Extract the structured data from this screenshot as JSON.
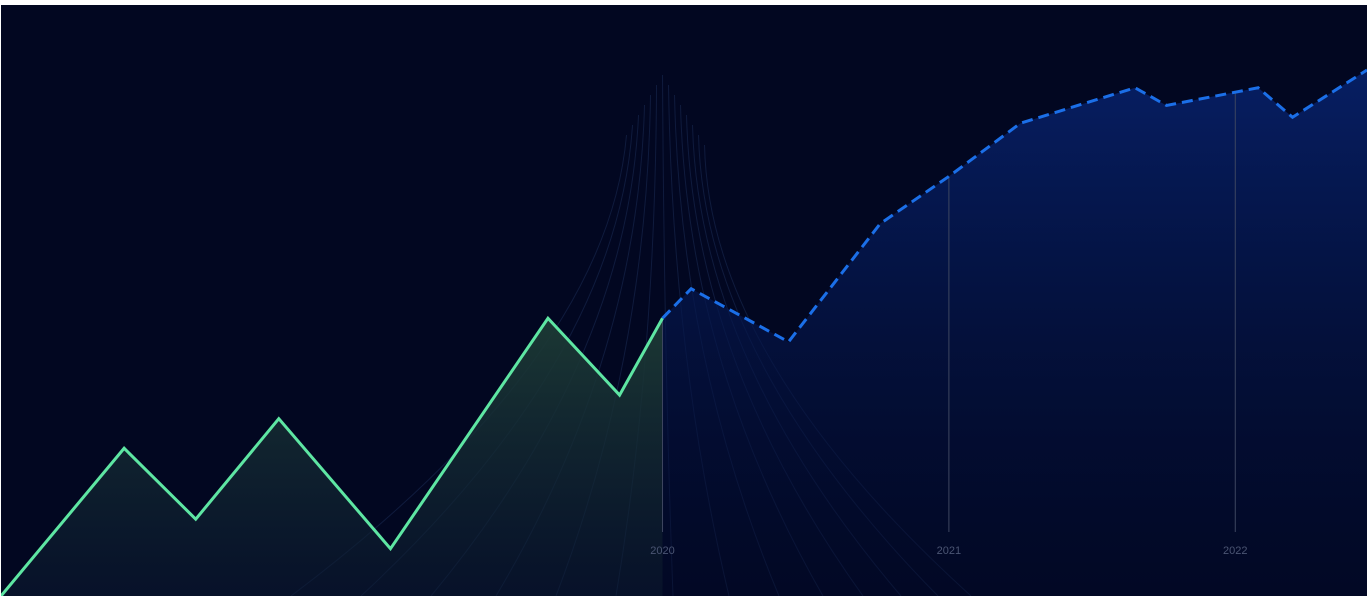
{
  "chart_data": {
    "type": "line",
    "title": "",
    "xlabel": "",
    "ylabel": "",
    "x_ticks": [
      2020,
      2021,
      2022
    ],
    "xlim": [
      2017.69,
      2022.46
    ],
    "ylim": [
      0,
      100
    ],
    "grid": false,
    "legend": "none",
    "series": [
      {
        "style": "solid",
        "color": "#5ee6a3",
        "fill": "area",
        "points": [
          {
            "x": 2017.69,
            "y": 0
          },
          {
            "x": 2018.12,
            "y": 25
          },
          {
            "x": 2018.37,
            "y": 13
          },
          {
            "x": 2018.66,
            "y": 30
          },
          {
            "x": 2019.05,
            "y": 8
          },
          {
            "x": 2019.6,
            "y": 47
          },
          {
            "x": 2019.85,
            "y": 34
          },
          {
            "x": 2020.0,
            "y": 47
          }
        ]
      },
      {
        "style": "dashed",
        "color": "#1b6fe8",
        "fill": "area",
        "points": [
          {
            "x": 2020.0,
            "y": 47
          },
          {
            "x": 2020.1,
            "y": 52
          },
          {
            "x": 2020.44,
            "y": 43
          },
          {
            "x": 2020.76,
            "y": 63
          },
          {
            "x": 2021.0,
            "y": 71
          },
          {
            "x": 2021.25,
            "y": 80
          },
          {
            "x": 2021.65,
            "y": 86
          },
          {
            "x": 2021.76,
            "y": 83
          },
          {
            "x": 2022.08,
            "y": 86
          },
          {
            "x": 2022.2,
            "y": 81
          },
          {
            "x": 2022.46,
            "y": 89
          }
        ]
      }
    ]
  },
  "theme": {
    "background": "#020721",
    "tick_text_color": "#4b5573",
    "marker_line_color": "#3d4660",
    "decor_line_color": "#1b2b55"
  }
}
